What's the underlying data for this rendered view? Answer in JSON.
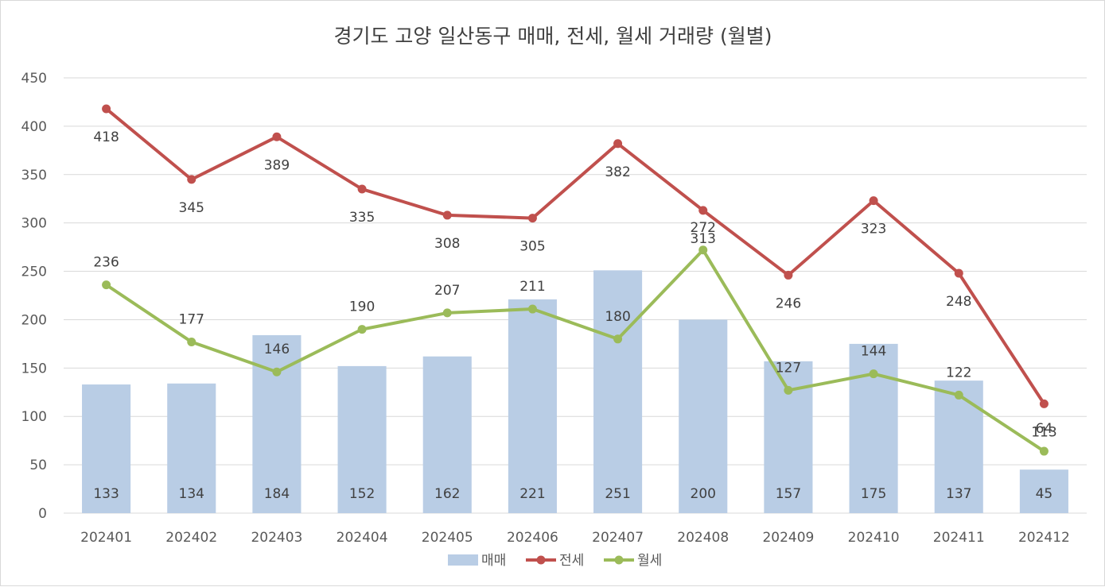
{
  "chart_data": {
    "type": "bar",
    "title": "경기도 고양 일산동구 매매, 전세, 월세 거래량 (월별)",
    "xlabel": "",
    "ylabel": "",
    "ylim": [
      0,
      450
    ],
    "yticks": [
      0,
      50,
      100,
      150,
      200,
      250,
      300,
      350,
      400,
      450
    ],
    "grid": true,
    "legend_position": "bottom",
    "categories": [
      "202401",
      "202402",
      "202403",
      "202404",
      "202405",
      "202406",
      "202407",
      "202408",
      "202409",
      "202410",
      "202411",
      "202412"
    ],
    "series": [
      {
        "name": "매매",
        "type": "bar",
        "color": "#b9cde5",
        "values": [
          133,
          134,
          184,
          152,
          162,
          221,
          251,
          200,
          157,
          175,
          137,
          45
        ]
      },
      {
        "name": "전세",
        "type": "line",
        "color": "#c0504d",
        "values": [
          418,
          345,
          389,
          335,
          308,
          305,
          382,
          313,
          246,
          323,
          248,
          113
        ]
      },
      {
        "name": "월세",
        "type": "line",
        "color": "#9bbb59",
        "values": [
          236,
          177,
          146,
          190,
          207,
          211,
          180,
          272,
          127,
          144,
          122,
          64
        ]
      }
    ]
  }
}
